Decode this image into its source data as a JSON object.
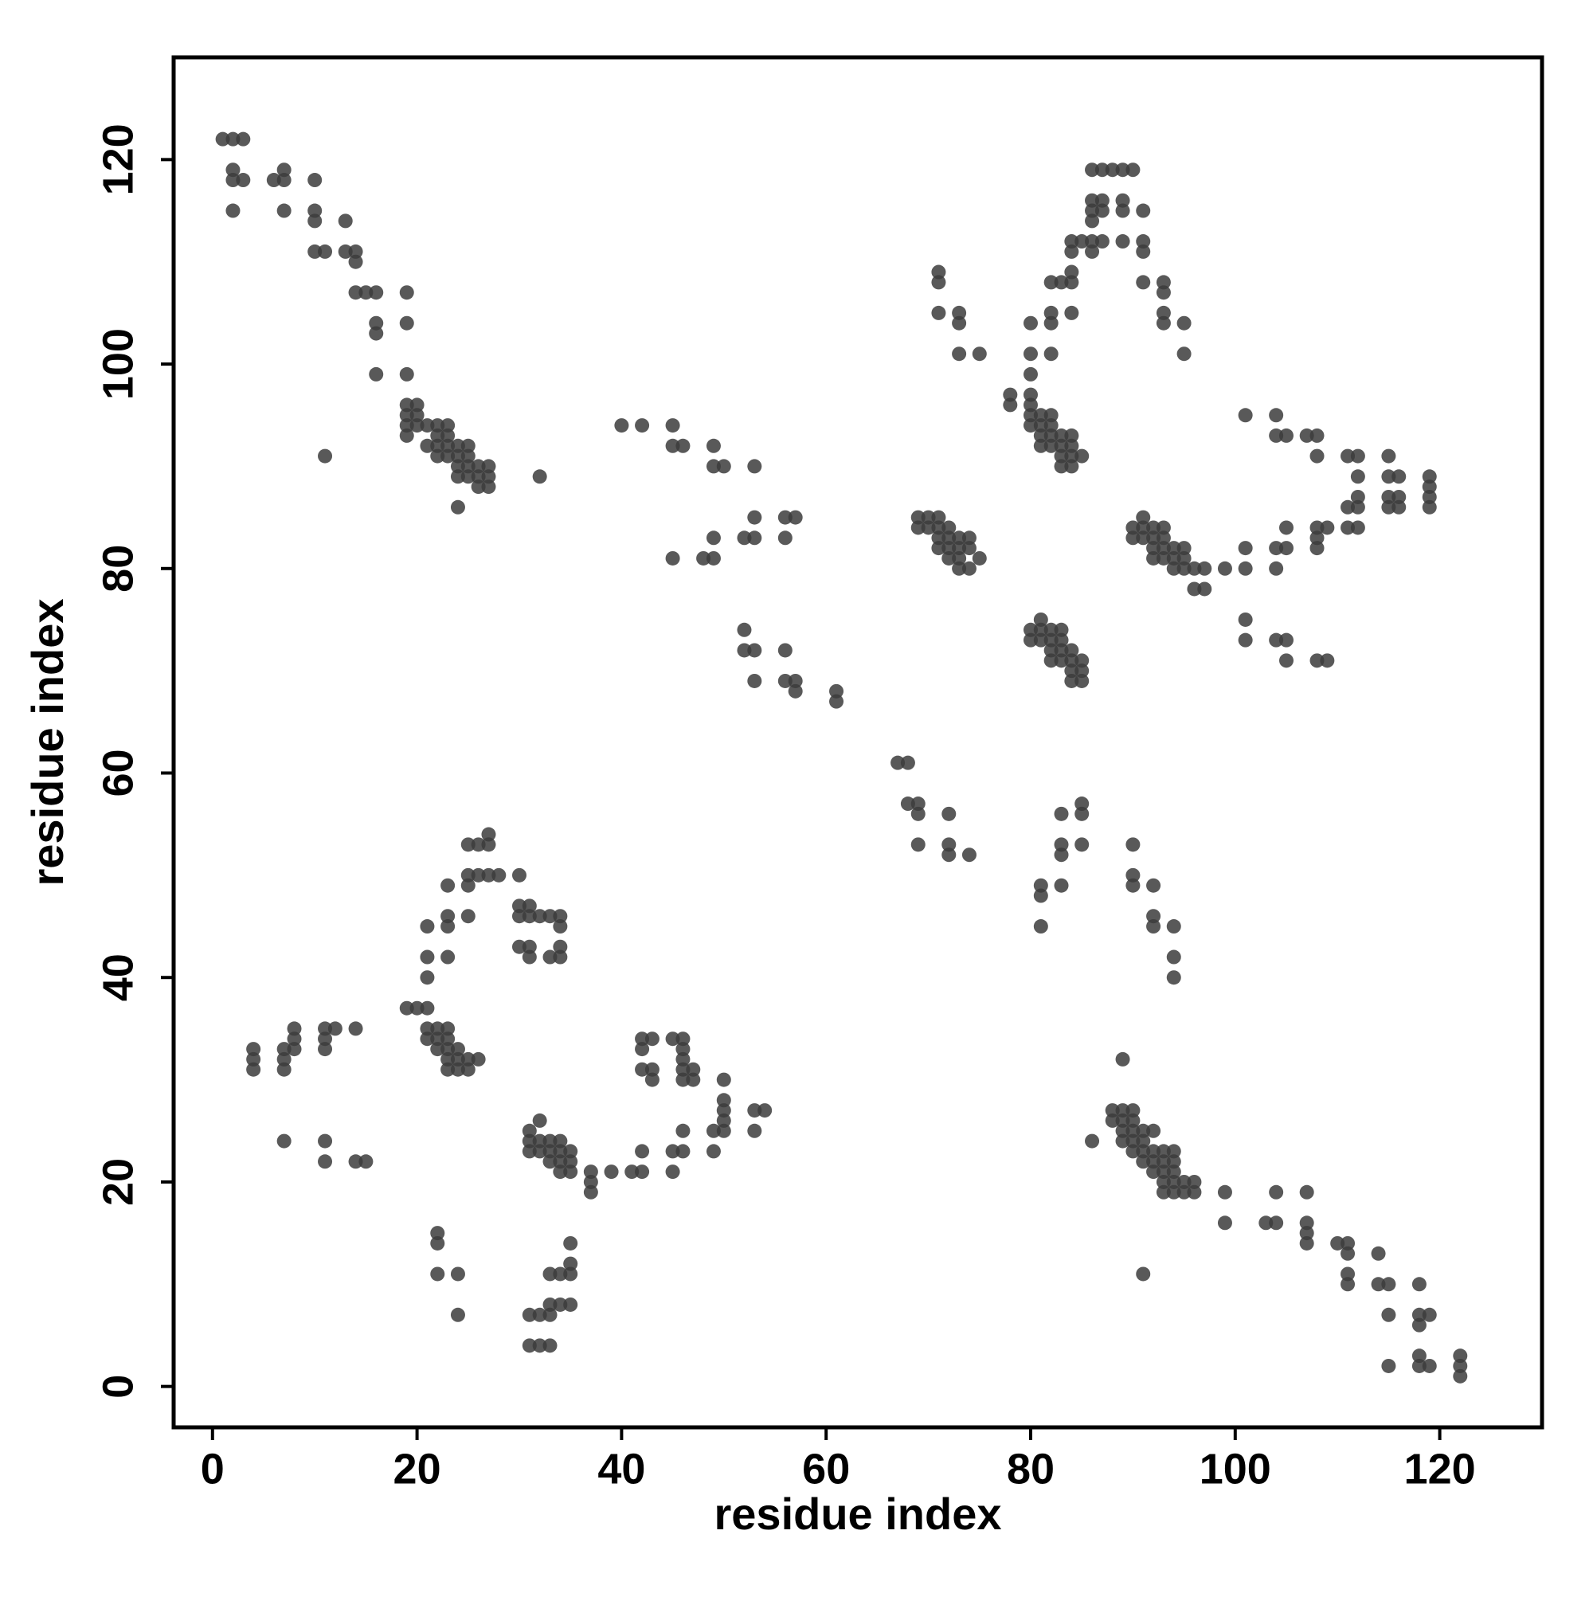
{
  "chart_data": {
    "type": "scatter",
    "x_label": "residue index",
    "y_label": "residue index",
    "xlim": [
      -3.8,
      130
    ],
    "ylim": [
      -4,
      130
    ],
    "xticks": [
      0,
      20,
      40,
      60,
      80,
      100,
      120
    ],
    "yticks": [
      0,
      20,
      40,
      60,
      80,
      100,
      120
    ],
    "x": [
      1,
      2,
      3,
      2,
      2,
      3,
      2,
      6,
      7,
      7,
      7,
      10,
      10,
      10,
      10,
      11,
      13,
      13,
      14,
      14,
      14,
      15,
      16,
      16,
      16,
      16,
      19,
      19,
      19,
      19,
      20,
      19,
      20,
      19,
      20,
      19,
      21,
      21,
      22,
      22,
      22,
      22,
      23,
      23,
      23,
      23,
      24,
      24,
      24,
      24,
      25,
      25,
      25,
      25,
      26,
      26,
      26,
      27,
      27,
      27,
      24,
      11,
      32,
      40,
      42,
      45,
      45,
      46,
      49,
      49,
      50,
      53,
      45,
      48,
      49,
      49,
      52,
      53,
      53,
      56,
      57,
      56,
      52,
      52,
      53,
      56,
      53,
      56,
      57,
      57,
      61,
      61,
      69,
      70,
      71,
      69,
      70,
      71,
      72,
      71,
      72,
      73,
      74,
      71,
      72,
      73,
      74,
      72,
      73,
      75,
      73,
      74,
      71,
      71,
      71,
      73,
      73,
      73,
      75,
      78,
      78,
      80,
      80,
      80,
      80,
      80,
      80,
      81,
      80,
      81,
      82,
      82,
      81,
      82,
      83,
      81,
      82,
      83,
      84,
      84,
      83,
      84,
      85,
      83,
      84,
      82,
      82,
      82,
      82,
      83,
      84,
      84,
      84,
      84,
      84,
      85,
      86,
      86,
      86,
      86,
      86,
      87,
      87,
      87,
      86,
      87,
      88,
      89,
      90,
      89,
      89,
      89,
      91,
      91,
      91,
      91,
      93,
      93,
      93,
      93,
      95,
      95,
      90,
      91,
      91,
      90,
      91,
      92,
      92,
      93,
      93,
      92,
      93,
      94,
      92,
      93,
      94,
      95,
      95,
      94,
      95,
      96,
      97,
      96,
      97,
      99,
      101,
      101,
      104,
      105,
      104,
      105,
      108,
      109,
      108,
      108,
      111,
      112,
      111,
      112,
      112,
      112,
      111,
      112,
      107,
      108,
      108,
      104,
      104,
      105,
      101,
      115,
      115,
      116,
      115,
      116,
      115,
      116,
      119,
      119,
      119,
      119,
      101,
      101,
      104,
      105,
      105,
      108,
      109,
      81,
      80,
      81,
      82,
      80,
      81,
      82,
      83,
      83,
      82,
      83,
      84,
      82,
      83,
      84,
      85,
      84,
      85,
      84,
      85,
      67,
      68,
      68,
      69,
      69,
      72,
      69,
      72,
      72,
      74,
      81,
      81,
      81,
      83,
      83,
      83,
      83,
      85,
      85,
      85,
      90,
      90,
      90,
      92,
      92,
      92,
      94,
      94,
      94,
      86,
      88,
      89,
      90,
      88,
      89,
      90,
      89,
      90,
      91,
      92,
      89,
      90,
      91,
      90,
      91,
      92,
      93,
      94,
      91,
      92,
      93,
      94,
      92,
      93,
      94,
      93,
      94,
      95,
      96,
      93,
      94,
      95,
      96,
      89,
      91,
      99,
      99,
      103,
      104,
      104,
      107,
      107,
      107,
      107,
      110,
      111,
      111,
      111,
      111,
      114,
      114,
      115,
      115,
      115,
      118,
      118,
      119,
      118,
      118,
      118,
      119,
      122,
      122,
      122,
      4,
      4,
      4,
      7,
      7,
      7,
      8,
      8,
      8,
      11,
      12,
      11,
      11,
      14,
      7,
      11,
      11,
      14,
      15,
      19,
      20,
      21,
      21,
      22,
      23,
      21,
      22,
      23,
      22,
      23,
      24,
      23,
      24,
      25,
      26,
      23,
      24,
      25,
      21,
      21,
      21,
      23,
      23,
      23,
      23,
      25,
      25,
      25,
      25,
      26,
      26,
      27,
      27,
      27,
      28,
      30,
      30,
      31,
      30,
      31,
      30,
      31,
      31,
      32,
      33,
      34,
      34,
      33,
      34,
      34,
      22,
      22,
      22,
      24,
      24,
      31,
      32,
      31,
      32,
      33,
      31,
      32,
      33,
      34,
      34,
      35,
      33,
      34,
      35,
      34,
      35,
      37,
      37,
      37,
      39,
      31,
      32,
      31,
      32,
      33,
      33,
      33,
      33,
      34,
      34,
      35,
      35,
      35,
      35,
      41,
      42,
      42,
      45,
      46,
      45,
      46,
      49,
      50,
      49,
      50,
      50,
      50,
      50,
      53,
      54,
      53,
      42,
      43,
      42,
      42,
      43,
      43,
      45,
      46,
      46,
      46,
      46,
      46,
      47,
      47
    ],
    "series": [
      {
        "color": "#3c3c3c",
        "values": [
          122,
          122,
          122,
          119,
          118,
          118,
          115,
          118,
          118,
          119,
          115,
          118,
          115,
          114,
          111,
          111,
          114,
          111,
          111,
          110,
          107,
          107,
          107,
          104,
          103,
          99,
          107,
          104,
          99,
          96,
          96,
          95,
          95,
          94,
          94,
          93,
          94,
          92,
          94,
          93,
          92,
          91,
          94,
          93,
          92,
          91,
          92,
          91,
          90,
          89,
          92,
          91,
          90,
          89,
          90,
          89,
          88,
          90,
          89,
          88,
          86,
          91,
          89,
          94,
          94,
          94,
          92,
          92,
          92,
          90,
          90,
          90,
          81,
          81,
          81,
          83,
          83,
          83,
          85,
          85,
          85,
          83,
          74,
          72,
          72,
          72,
          69,
          69,
          69,
          68,
          68,
          67,
          85,
          85,
          85,
          84,
          84,
          84,
          84,
          83,
          83,
          83,
          83,
          82,
          82,
          82,
          82,
          81,
          81,
          81,
          80,
          80,
          109,
          108,
          105,
          105,
          104,
          101,
          101,
          97,
          96,
          104,
          101,
          99,
          97,
          96,
          95,
          95,
          94,
          94,
          95,
          94,
          93,
          93,
          93,
          92,
          92,
          92,
          93,
          92,
          91,
          91,
          91,
          90,
          90,
          108,
          105,
          104,
          101,
          108,
          108,
          109,
          111,
          112,
          105,
          112,
          112,
          111,
          114,
          115,
          116,
          116,
          115,
          112,
          119,
          119,
          119,
          119,
          119,
          116,
          115,
          112,
          115,
          112,
          111,
          108,
          108,
          107,
          105,
          104,
          104,
          101,
          84,
          84,
          85,
          83,
          83,
          84,
          83,
          84,
          83,
          82,
          82,
          82,
          81,
          81,
          81,
          82,
          81,
          80,
          80,
          80,
          80,
          78,
          78,
          80,
          80,
          82,
          82,
          82,
          80,
          84,
          84,
          84,
          83,
          82,
          84,
          84,
          86,
          86,
          87,
          89,
          91,
          91,
          93,
          93,
          91,
          95,
          93,
          93,
          95,
          91,
          89,
          89,
          87,
          87,
          86,
          86,
          89,
          88,
          87,
          86,
          75,
          73,
          73,
          73,
          71,
          71,
          71,
          75,
          74,
          74,
          74,
          73,
          73,
          73,
          74,
          73,
          72,
          72,
          72,
          71,
          71,
          71,
          71,
          70,
          70,
          69,
          69,
          61,
          61,
          57,
          57,
          56,
          56,
          53,
          53,
          52,
          52,
          49,
          48,
          45,
          56,
          53,
          52,
          49,
          57,
          56,
          53,
          53,
          50,
          49,
          49,
          46,
          45,
          45,
          42,
          40,
          24,
          27,
          27,
          27,
          26,
          26,
          26,
          25,
          25,
          25,
          25,
          24,
          24,
          24,
          23,
          23,
          23,
          23,
          23,
          22,
          22,
          22,
          22,
          21,
          21,
          21,
          20,
          20,
          20,
          20,
          19,
          19,
          19,
          19,
          32,
          11,
          19,
          16,
          16,
          16,
          19,
          19,
          16,
          15,
          14,
          14,
          14,
          13,
          11,
          10,
          13,
          10,
          10,
          7,
          2,
          10,
          7,
          7,
          6,
          3,
          2,
          2,
          3,
          2,
          1,
          33,
          32,
          31,
          33,
          32,
          31,
          35,
          34,
          33,
          35,
          35,
          34,
          33,
          35,
          24,
          24,
          22,
          22,
          22,
          37,
          37,
          37,
          35,
          35,
          35,
          34,
          34,
          34,
          33,
          33,
          33,
          32,
          32,
          32,
          32,
          31,
          31,
          31,
          45,
          42,
          40,
          49,
          46,
          45,
          42,
          53,
          50,
          49,
          46,
          53,
          50,
          54,
          53,
          50,
          50,
          50,
          47,
          47,
          46,
          46,
          43,
          43,
          42,
          46,
          46,
          46,
          45,
          42,
          42,
          43,
          15,
          14,
          11,
          11,
          7,
          25,
          26,
          24,
          24,
          24,
          23,
          23,
          23,
          24,
          23,
          23,
          22,
          22,
          22,
          21,
          21,
          21,
          20,
          19,
          21,
          7,
          7,
          4,
          4,
          4,
          8,
          7,
          11,
          11,
          8,
          8,
          11,
          12,
          14,
          21,
          23,
          21,
          23,
          23,
          21,
          25,
          25,
          25,
          23,
          27,
          28,
          26,
          30,
          27,
          27,
          25,
          34,
          34,
          33,
          31,
          31,
          30,
          34,
          34,
          33,
          32,
          31,
          30,
          31,
          30
        ]
      }
    ]
  }
}
